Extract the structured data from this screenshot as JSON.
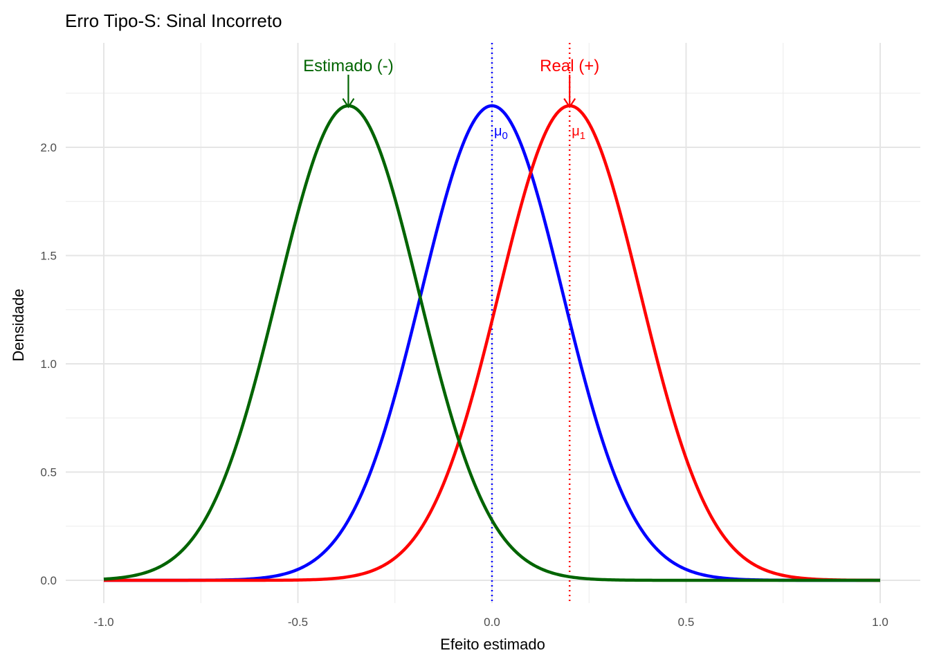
{
  "chart_data": {
    "type": "line",
    "title": "Erro Tipo-S: Sinal Incorreto",
    "xlabel": "Efeito estimado",
    "ylabel": "Densidade",
    "xlim": [
      -1.0,
      1.0
    ],
    "ylim": [
      0,
      2.4
    ],
    "x_ticks": [
      "-1.0",
      "-0.5",
      "0.0",
      "0.5",
      "1.0"
    ],
    "x_tick_values": [
      -1.0,
      -0.5,
      0.0,
      0.5,
      1.0
    ],
    "y_ticks": [
      "0.0",
      "0.5",
      "1.0",
      "1.5",
      "2.0"
    ],
    "y_tick_values": [
      0.0,
      0.5,
      1.0,
      1.5,
      2.0
    ],
    "grid": true,
    "series": [
      {
        "distribution": "normal",
        "mean": 0.0,
        "sd": 0.182,
        "color": "#0000ff"
      },
      {
        "distribution": "normal",
        "mean": 0.2,
        "sd": 0.182,
        "color": "#ff0000"
      },
      {
        "distribution": "normal",
        "mean": -0.37,
        "sd": 0.182,
        "color": "#006400"
      }
    ],
    "vlines": [
      {
        "x": 0.0,
        "color": "#0000ff",
        "style": "dotted",
        "label": "μ",
        "subscript": "0"
      },
      {
        "x": 0.2,
        "color": "#ff0000",
        "style": "dotted",
        "label": "μ",
        "subscript": "1"
      }
    ],
    "annotations": [
      {
        "text": "Estimado (-)",
        "x": -0.37,
        "y": 2.38,
        "arrow_to_y": 2.19,
        "color": "#006400"
      },
      {
        "text": "Real (+)",
        "x": 0.2,
        "y": 2.38,
        "arrow_to_y": 2.19,
        "color": "#ff0000"
      }
    ]
  }
}
